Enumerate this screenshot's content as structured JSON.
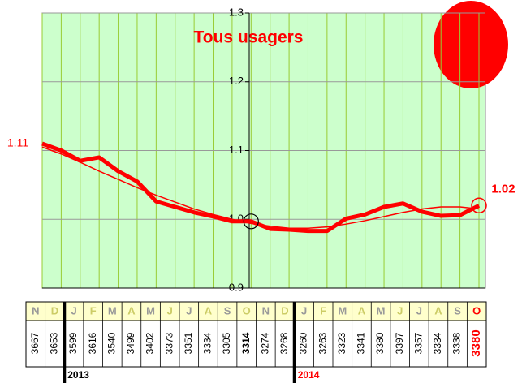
{
  "chart_data": {
    "type": "line",
    "title": "Tous usagers",
    "categories": [
      "N",
      "D",
      "J",
      "F",
      "M",
      "A",
      "M",
      "J",
      "J",
      "A",
      "S",
      "O",
      "N",
      "D",
      "J",
      "F",
      "M",
      "A",
      "M",
      "J",
      "J",
      "A",
      "S",
      "O"
    ],
    "series": [
      {
        "color": "#ff0000",
        "values": [
          1.11,
          1.1,
          1.085,
          1.09,
          1.07,
          1.055,
          1.026,
          1.018,
          1.01,
          1.004,
          0.997,
          0.997,
          0.986,
          0.985,
          0.983,
          0.983,
          1.001,
          1.007,
          1.018,
          1.023,
          1.011,
          1.005,
          1.006,
          1.02
        ],
        "value_labels": [
          "1.11",
          null,
          null,
          null,
          null,
          null,
          null,
          null,
          null,
          null,
          null,
          null,
          null,
          null,
          null,
          null,
          null,
          null,
          null,
          null,
          null,
          null,
          null,
          "1.02"
        ]
      },
      {
        "color": "#ff0000",
        "values": [
          1.105,
          1.095,
          1.083,
          1.07,
          1.058,
          1.046,
          1.035,
          1.025,
          1.015,
          1.007,
          1.0,
          0.994,
          0.99,
          0.987,
          0.987,
          0.989,
          0.993,
          0.998,
          1.004,
          1.01,
          1.015,
          1.018,
          1.018,
          1.015
        ]
      }
    ],
    "counts": [
      "3667",
      "3653",
      "3599",
      "3616",
      "3540",
      "3499",
      "3402",
      "3373",
      "3351",
      "3334",
      "3305",
      "3314",
      "3274",
      "3268",
      "3260",
      "3263",
      "3323",
      "3341",
      "3380",
      "3397",
      "3357",
      "3334",
      "3338",
      "3380"
    ],
    "years": [
      "2013",
      "2014"
    ],
    "ylim": [
      0.9,
      1.3
    ],
    "yticks": [
      0.9,
      {
        "value": 1,
        "label": "1.0"
      },
      1.1,
      1.2,
      1.3
    ],
    "grid": true
  }
}
